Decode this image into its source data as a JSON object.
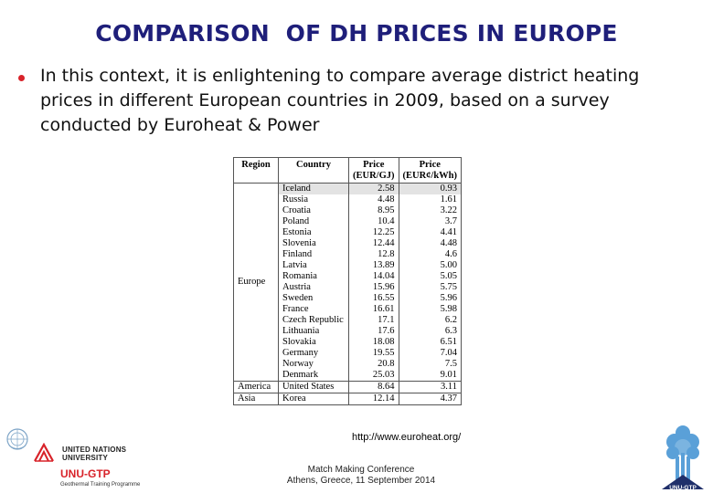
{
  "slide": {
    "title": "COMPARISON  OF DH PRICES IN EUROPE",
    "bullet": "In this context, it is enlightening to compare average district heating prices in different European countries in 2009, based on a survey conducted by Euroheat & Power",
    "source": "http://www.euroheat.org/",
    "footer_line1": "Match Making Conference",
    "footer_line2": "Athens, Greece, 11 September 2014"
  },
  "table": {
    "headers": {
      "region": "Region",
      "country": "Country",
      "price_gj_1": "Price",
      "price_gj_2": "(EUR/GJ)",
      "price_kwh_1": "Price",
      "price_kwh_2": "(EUR¢/kWh)"
    },
    "groups": [
      {
        "region": "Europe",
        "rows": [
          {
            "country": "Iceland",
            "gj": "2.58",
            "kwh": "0.93"
          },
          {
            "country": "Russia",
            "gj": "4.48",
            "kwh": "1.61"
          },
          {
            "country": "Croatia",
            "gj": "8.95",
            "kwh": "3.22"
          },
          {
            "country": "Poland",
            "gj": "10.4",
            "kwh": "3.7"
          },
          {
            "country": "Estonia",
            "gj": "12.25",
            "kwh": "4.41"
          },
          {
            "country": "Slovenia",
            "gj": "12.44",
            "kwh": "4.48"
          },
          {
            "country": "Finland",
            "gj": "12.8",
            "kwh": "4.6"
          },
          {
            "country": "Latvia",
            "gj": "13.89",
            "kwh": "5.00"
          },
          {
            "country": "Romania",
            "gj": "14.04",
            "kwh": "5.05"
          },
          {
            "country": "Austria",
            "gj": "15.96",
            "kwh": "5.75"
          },
          {
            "country": "Sweden",
            "gj": "16.55",
            "kwh": "5.96"
          },
          {
            "country": "France",
            "gj": "16.61",
            "kwh": "5.98"
          },
          {
            "country": "Czech Republic",
            "gj": "17.1",
            "kwh": "6.2"
          },
          {
            "country": "Lithuania",
            "gj": "17.6",
            "kwh": "6.3"
          },
          {
            "country": "Slovakia",
            "gj": "18.08",
            "kwh": "6.51"
          },
          {
            "country": "Germany",
            "gj": "19.55",
            "kwh": "7.04"
          },
          {
            "country": "Norway",
            "gj": "20.8",
            "kwh": "7.5"
          },
          {
            "country": "Denmark",
            "gj": "25.03",
            "kwh": "9.01"
          }
        ]
      },
      {
        "region": "America",
        "rows": [
          {
            "country": "United States",
            "gj": "8.64",
            "kwh": "3.11"
          }
        ]
      },
      {
        "region": "Asia",
        "rows": [
          {
            "country": "Korea",
            "gj": "12.14",
            "kwh": "4.37"
          }
        ]
      }
    ]
  },
  "logos": {
    "unu_name_line1": "UNITED NATIONS",
    "unu_name_line2": "UNIVERSITY",
    "unu_gtp": "UNU-GTP",
    "unu_programme": "Geothermal Training Programme",
    "tree_label": "UNU-GTP"
  },
  "colors": {
    "title": "#1f1f7a",
    "bullet": "#d8232a",
    "brand_red": "#d8232a",
    "tree_blue": "#5aa0d8"
  }
}
